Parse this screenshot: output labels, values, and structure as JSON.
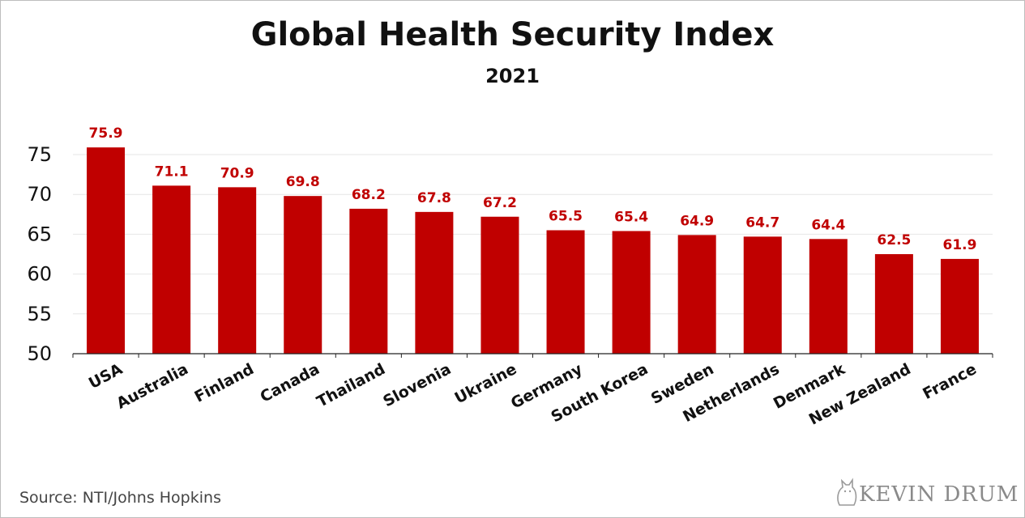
{
  "chart_data": {
    "type": "bar",
    "title": "Global Health Security Index",
    "subtitle": "2021",
    "categories": [
      "USA",
      "Australia",
      "Finland",
      "Canada",
      "Thailand",
      "Slovenia",
      "Ukraine",
      "Germany",
      "South Korea",
      "Sweden",
      "Netherlands",
      "Denmark",
      "New Zealand",
      "France"
    ],
    "values": [
      75.9,
      71.1,
      70.9,
      69.8,
      68.2,
      67.8,
      67.2,
      65.5,
      65.4,
      64.9,
      64.7,
      64.4,
      62.5,
      61.9
    ],
    "value_labels": [
      "75.9",
      "71.1",
      "70.9",
      "69.8",
      "68.2",
      "67.8",
      "67.2",
      "65.5",
      "65.4",
      "64.9",
      "64.7",
      "64.4",
      "62.5",
      "61.9"
    ],
    "ylim": [
      50,
      77
    ],
    "yticks": [
      "50",
      "55",
      "60",
      "65",
      "70",
      "75"
    ],
    "grid": true,
    "bar_color": "#c00000",
    "xlabel": "",
    "ylabel": ""
  },
  "footer": {
    "source": "Source: NTI/Johns Hopkins",
    "brand": "KEVIN DRUM",
    "brand_icon": "cat-icon"
  }
}
